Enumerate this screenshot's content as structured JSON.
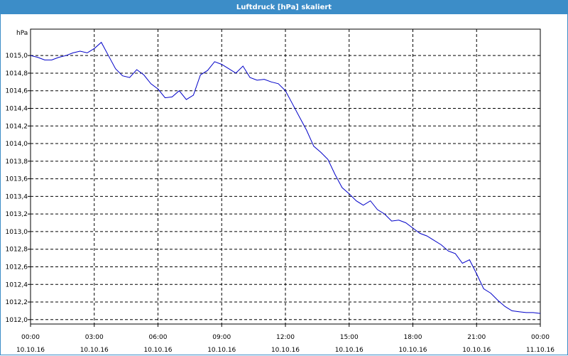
{
  "window": {
    "title": "Luftdruck [hPa] skaliert"
  },
  "colors": {
    "titlebar": "#3c8dc8",
    "series": "#0000c8",
    "grid": "#000000",
    "axis": "#000000"
  },
  "chart_data": {
    "type": "line",
    "title": "Luftdruck [hPa] skaliert",
    "unit_label": "hPa",
    "xlabel": "",
    "ylabel": "hPa",
    "grid": true,
    "grid_style": "dashed",
    "xlim": [
      "10.10.16 00:00",
      "11.10.16 00:00"
    ],
    "ylim": [
      1011.95,
      1015.3
    ],
    "y_ticks": [
      {
        "value": 1012.0,
        "label": "1012,0"
      },
      {
        "value": 1012.2,
        "label": "1012,2"
      },
      {
        "value": 1012.4,
        "label": "1012,4"
      },
      {
        "value": 1012.6,
        "label": "1012,6"
      },
      {
        "value": 1012.8,
        "label": "1012,8"
      },
      {
        "value": 1013.0,
        "label": "1013,0"
      },
      {
        "value": 1013.2,
        "label": "1013,2"
      },
      {
        "value": 1013.4,
        "label": "1013,4"
      },
      {
        "value": 1013.6,
        "label": "1013,6"
      },
      {
        "value": 1013.8,
        "label": "1013,8"
      },
      {
        "value": 1014.0,
        "label": "1014,0"
      },
      {
        "value": 1014.2,
        "label": "1014,2"
      },
      {
        "value": 1014.4,
        "label": "1014,4"
      },
      {
        "value": 1014.6,
        "label": "1014,6"
      },
      {
        "value": 1014.8,
        "label": "1014,8"
      },
      {
        "value": 1015.0,
        "label": "1015,0"
      }
    ],
    "x_ticks": [
      {
        "value": "10.10.16 00:00",
        "time": "00:00",
        "date": "10.10.16"
      },
      {
        "value": "10.10.16 03:00",
        "time": "03:00",
        "date": "10.10.16"
      },
      {
        "value": "10.10.16 06:00",
        "time": "06:00",
        "date": "10.10.16"
      },
      {
        "value": "10.10.16 09:00",
        "time": "09:00",
        "date": "10.10.16"
      },
      {
        "value": "10.10.16 12:00",
        "time": "12:00",
        "date": "10.10.16"
      },
      {
        "value": "10.10.16 15:00",
        "time": "15:00",
        "date": "10.10.16"
      },
      {
        "value": "10.10.16 18:00",
        "time": "18:00",
        "date": "10.10.16"
      },
      {
        "value": "10.10.16 21:00",
        "time": "21:00",
        "date": "10.10.16"
      },
      {
        "value": "11.10.16 00:00",
        "time": "00:00",
        "date": "11.10.16"
      }
    ],
    "series": [
      {
        "x": [
          "10.10.16 00:00",
          "10.10.16 00:20",
          "10.10.16 00:40",
          "10.10.16 01:00",
          "10.10.16 01:20",
          "10.10.16 01:40",
          "10.10.16 02:00",
          "10.10.16 02:20",
          "10.10.16 02:40",
          "10.10.16 03:00",
          "10.10.16 03:20",
          "10.10.16 03:40",
          "10.10.16 04:00",
          "10.10.16 04:20",
          "10.10.16 04:40",
          "10.10.16 05:00",
          "10.10.16 05:20",
          "10.10.16 05:40",
          "10.10.16 06:00",
          "10.10.16 06:20",
          "10.10.16 06:40",
          "10.10.16 07:00",
          "10.10.16 07:20",
          "10.10.16 07:40",
          "10.10.16 08:00",
          "10.10.16 08:20",
          "10.10.16 08:40",
          "10.10.16 09:00",
          "10.10.16 09:20",
          "10.10.16 09:40",
          "10.10.16 10:00",
          "10.10.16 10:20",
          "10.10.16 10:40",
          "10.10.16 11:00",
          "10.10.16 11:20",
          "10.10.16 11:40",
          "10.10.16 12:00",
          "10.10.16 12:20",
          "10.10.16 12:40",
          "10.10.16 13:00",
          "10.10.16 13:20",
          "10.10.16 13:40",
          "10.10.16 14:00",
          "10.10.16 14:20",
          "10.10.16 14:40",
          "10.10.16 15:00",
          "10.10.16 15:20",
          "10.10.16 15:40",
          "10.10.16 16:00",
          "10.10.16 16:20",
          "10.10.16 16:40",
          "10.10.16 17:00",
          "10.10.16 17:20",
          "10.10.16 17:40",
          "10.10.16 18:00",
          "10.10.16 18:20",
          "10.10.16 18:40",
          "10.10.16 19:00",
          "10.10.16 19:20",
          "10.10.16 19:40",
          "10.10.16 20:00",
          "10.10.16 20:20",
          "10.10.16 20:40",
          "10.10.16 21:00",
          "10.10.16 21:20",
          "10.10.16 21:40",
          "10.10.16 22:00",
          "10.10.16 22:20",
          "10.10.16 22:40",
          "10.10.16 23:00",
          "10.10.16 23:20",
          "10.10.16 23:40",
          "11.10.16 00:00"
        ],
        "values": [
          1015.0,
          1014.98,
          1014.95,
          1014.95,
          1014.98,
          1015.0,
          1015.03,
          1015.05,
          1015.03,
          1015.08,
          1015.15,
          1015.0,
          1014.85,
          1014.77,
          1014.75,
          1014.84,
          1014.78,
          1014.68,
          1014.62,
          1014.52,
          1014.53,
          1014.6,
          1014.5,
          1014.55,
          1014.78,
          1014.83,
          1014.93,
          1014.9,
          1014.85,
          1014.8,
          1014.88,
          1014.75,
          1014.72,
          1014.73,
          1014.7,
          1014.68,
          1014.6,
          1014.45,
          1014.3,
          1014.15,
          1013.97,
          1013.9,
          1013.82,
          1013.65,
          1013.5,
          1013.43,
          1013.35,
          1013.3,
          1013.35,
          1013.25,
          1013.2,
          1013.12,
          1013.13,
          1013.1,
          1013.04,
          1012.98,
          1012.95,
          1012.9,
          1012.85,
          1012.78,
          1012.75,
          1012.64,
          1012.68,
          1012.52,
          1012.35,
          1012.3,
          1012.22,
          1012.15,
          1012.1,
          1012.09,
          1012.08,
          1012.08,
          1012.07
        ]
      }
    ]
  }
}
